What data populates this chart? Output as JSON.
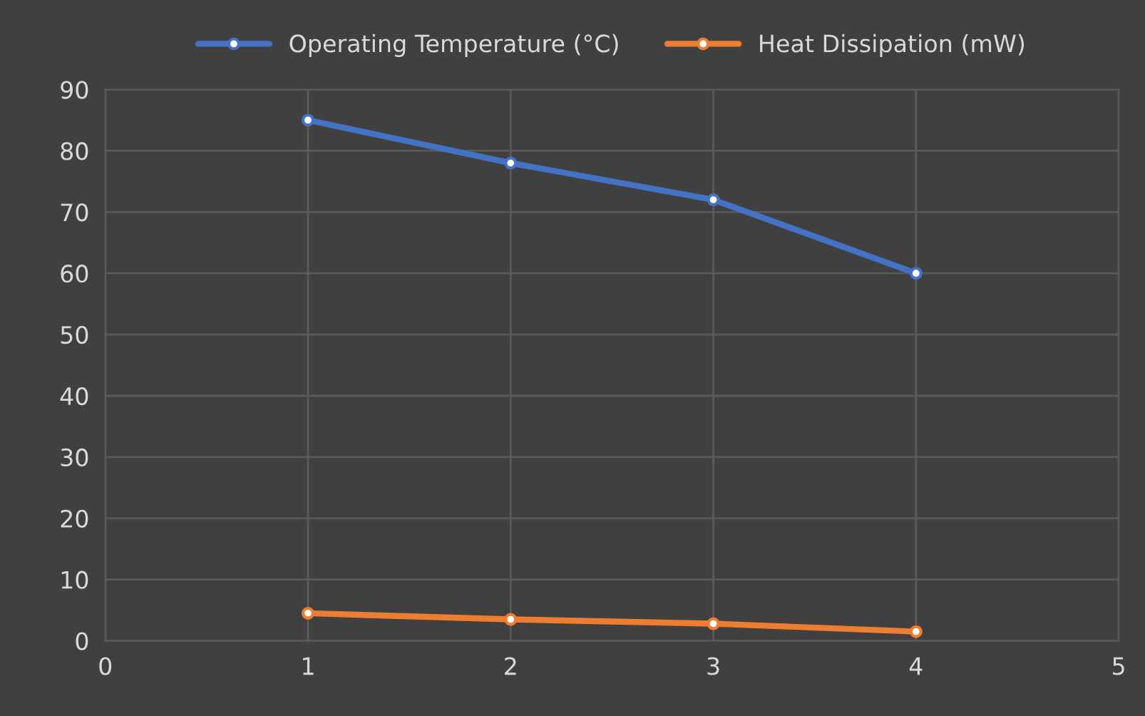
{
  "chart_data": {
    "type": "line",
    "x": [
      1,
      2,
      3,
      4
    ],
    "series": [
      {
        "name": "Operating Temperature (°C)",
        "color": "#4472c4",
        "values": [
          85,
          78,
          72,
          60
        ]
      },
      {
        "name": "Heat Dissipation (mW)",
        "color": "#ed7d31",
        "values": [
          4.5,
          3.5,
          2.8,
          1.5
        ]
      }
    ],
    "xlim": [
      0,
      5
    ],
    "xticks": [
      0,
      1,
      2,
      3,
      4,
      5
    ],
    "ylim": [
      0,
      90
    ],
    "yticks": [
      0,
      10,
      20,
      30,
      40,
      50,
      60,
      70,
      80,
      90
    ],
    "grid": true,
    "legend": "top",
    "marker": "circle",
    "line_style": "solid"
  }
}
